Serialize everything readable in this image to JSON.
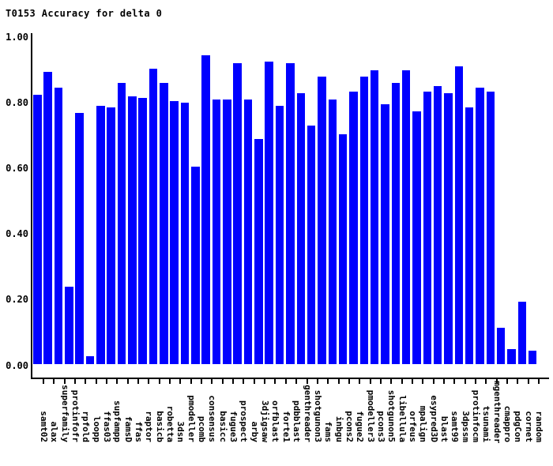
{
  "title": "T0153 Accuracy for delta 0",
  "colors": {
    "bar": "#0000ff",
    "axis": "#000000",
    "text": "#000000",
    "background": "#ffffff"
  },
  "chart_data": {
    "type": "bar",
    "title": "T0153 Accuracy for delta 0",
    "xlabel": "",
    "ylabel": "",
    "ylim": [
      0.0,
      1.0
    ],
    "grid": false,
    "legend": null,
    "ytick_labels": [
      "0.00",
      "0.20",
      "0.40",
      "0.60",
      "0.80",
      "1.00"
    ],
    "yticks": [
      0.0,
      0.2,
      0.4,
      0.6,
      0.8,
      1.0
    ],
    "categories": [
      "samt02",
      "alax",
      "superfamily",
      "protinfofr",
      "rpfold",
      "loopp",
      "ffas03",
      "supfampp",
      "famsD",
      "ffas",
      "raptor",
      "basicb",
      "robetta",
      "3dsn",
      "pmodeller",
      "pcomb",
      "consensus",
      "basicc",
      "fugue3",
      "prospect",
      "arby",
      "3djigsaw",
      "orfblast",
      "forte1",
      "pdbblast",
      "genthreader",
      "shotgunon3",
      "fams",
      "inbgu",
      "pcons2",
      "fugue2",
      "pmodeller3",
      "pcons3",
      "shotgunon5",
      "libellula",
      "orfeus",
      "mpalign",
      "esypred3D",
      "blast",
      "samt99",
      "3dpssm",
      "protinfocm",
      "tsunami",
      "mgenthreader",
      "cmappro",
      "pdgCon",
      "cornet",
      "random"
    ],
    "values": [
      0.825,
      0.895,
      0.845,
      0.24,
      0.77,
      0.03,
      0.79,
      0.785,
      0.86,
      0.82,
      0.815,
      0.905,
      0.86,
      0.805,
      0.8,
      0.605,
      0.945,
      0.81,
      0.81,
      0.92,
      0.81,
      0.69,
      0.925,
      0.79,
      0.92,
      0.83,
      0.73,
      0.88,
      0.81,
      0.705,
      0.835,
      0.88,
      0.9,
      0.795,
      0.86,
      0.9,
      0.775,
      0.835,
      0.85,
      0.83,
      0.91,
      0.785,
      0.845,
      0.835,
      0.115,
      0.05,
      0.195,
      0.045
    ],
    "bar_color": "#0000ff"
  }
}
